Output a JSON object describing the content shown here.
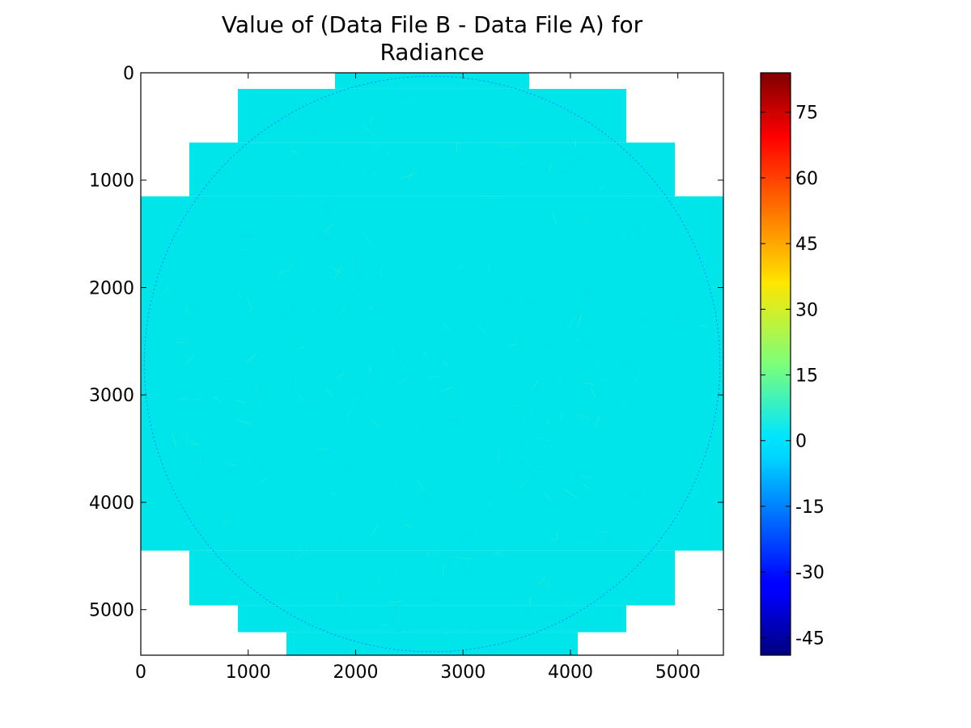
{
  "chart_data": {
    "type": "heatmap",
    "title_lines": [
      "Value of (Data File B - Data File A) for",
      "Radiance"
    ],
    "xlabel": "",
    "ylabel": "",
    "xlim": [
      0,
      5424
    ],
    "ylim": [
      5424,
      0
    ],
    "x_ticks": [
      0,
      1000,
      2000,
      3000,
      4000,
      5000
    ],
    "y_ticks": [
      0,
      1000,
      2000,
      3000,
      4000,
      5000
    ],
    "colorbar": {
      "colormap": "jet",
      "range": [
        -49,
        84
      ],
      "ticks": [
        -45,
        -30,
        -15,
        0,
        15,
        30,
        45,
        60,
        75
      ]
    },
    "field_value": 0,
    "field_color": "#00e5ea",
    "coverage_rows": [
      {
        "y": [
          0,
          150
        ],
        "x": [
          1808,
          3616
        ]
      },
      {
        "y": [
          150,
          650
        ],
        "x": [
          904,
          4520
        ]
      },
      {
        "y": [
          650,
          1150
        ],
        "x": [
          452,
          4972
        ]
      },
      {
        "y": [
          1150,
          4450
        ],
        "x": [
          0,
          5424
        ]
      },
      {
        "y": [
          4450,
          4960
        ],
        "x": [
          452,
          4972
        ]
      },
      {
        "y": [
          4960,
          5210
        ],
        "x": [
          904,
          4520
        ]
      },
      {
        "y": [
          5210,
          5424
        ],
        "x": [
          1356,
          4068
        ]
      }
    ],
    "disk": {
      "center": [
        2712,
        2712
      ],
      "radius": 2680
    }
  }
}
